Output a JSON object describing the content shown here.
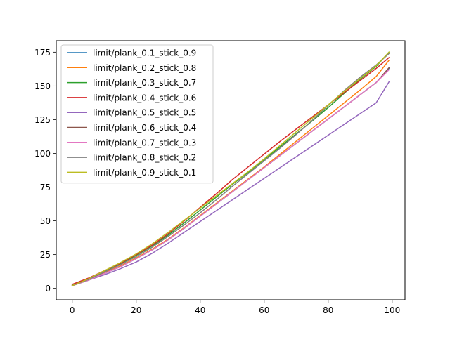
{
  "chart_data": {
    "type": "line",
    "title": "",
    "xlabel": "",
    "ylabel": "",
    "xlim": [
      -5,
      104
    ],
    "ylim": [
      -8.5,
      183.5
    ],
    "xticks": [
      0,
      20,
      40,
      60,
      80,
      100
    ],
    "yticks": [
      0,
      25,
      50,
      75,
      100,
      125,
      150,
      175
    ],
    "grid": false,
    "legend_position": "upper-left",
    "x": [
      0,
      5,
      10,
      15,
      20,
      25,
      30,
      35,
      40,
      45,
      50,
      55,
      60,
      65,
      70,
      75,
      80,
      85,
      90,
      95,
      99
    ],
    "series": [
      {
        "name": "limit/plank_0.1_stick_0.9",
        "color": "#1f77b4",
        "values": [
          2.0,
          6.0,
          11.0,
          16.0,
          22.0,
          28.5,
          36.0,
          44.5,
          53.5,
          62.5,
          71.5,
          80.5,
          89.5,
          98.5,
          107.5,
          116.5,
          125.5,
          134.5,
          143.5,
          152.5,
          163.0
        ]
      },
      {
        "name": "limit/plank_0.2_stick_0.8",
        "color": "#ff7f0e",
        "values": [
          2.5,
          6.5,
          11.5,
          16.5,
          22.5,
          29.0,
          36.5,
          45.0,
          54.0,
          63.0,
          72.0,
          81.0,
          90.0,
          99.5,
          109.0,
          118.5,
          128.0,
          137.5,
          147.0,
          157.0,
          169.0
        ]
      },
      {
        "name": "limit/plank_0.3_stick_0.7",
        "color": "#2ca02c",
        "values": [
          2.5,
          7.0,
          12.5,
          18.0,
          24.5,
          31.5,
          39.5,
          48.5,
          58.0,
          67.5,
          77.0,
          86.0,
          95.5,
          105.0,
          114.5,
          124.0,
          134.0,
          144.5,
          155.0,
          164.5,
          175.0
        ]
      },
      {
        "name": "limit/plank_0.4_stick_0.6",
        "color": "#d62728",
        "values": [
          3.0,
          7.5,
          13.0,
          18.5,
          25.0,
          32.0,
          40.5,
          50.0,
          60.0,
          70.0,
          80.5,
          90.0,
          99.5,
          109.0,
          118.0,
          127.0,
          136.0,
          145.0,
          154.0,
          163.0,
          171.0
        ]
      },
      {
        "name": "limit/plank_0.5_stick_0.5",
        "color": "#9467bd",
        "values": [
          2.0,
          6.0,
          10.0,
          14.5,
          19.5,
          26.0,
          33.5,
          41.5,
          49.5,
          57.5,
          65.5,
          73.5,
          81.5,
          89.5,
          97.5,
          105.5,
          113.5,
          121.5,
          129.5,
          137.5,
          153.0
        ]
      },
      {
        "name": "limit/plank_0.6_stick_0.4",
        "color": "#8c564b",
        "values": [
          2.0,
          6.0,
          11.0,
          16.0,
          22.0,
          28.5,
          36.0,
          44.5,
          53.5,
          62.5,
          71.5,
          80.5,
          89.5,
          98.5,
          107.5,
          116.5,
          125.5,
          134.5,
          143.5,
          152.5,
          163.5
        ]
      },
      {
        "name": "limit/plank_0.7_stick_0.3",
        "color": "#e377c2",
        "values": [
          2.0,
          6.0,
          11.0,
          16.0,
          22.0,
          28.5,
          36.0,
          44.5,
          53.5,
          62.5,
          71.5,
          80.5,
          89.5,
          98.5,
          107.5,
          116.5,
          125.5,
          134.5,
          143.5,
          152.5,
          162.0
        ]
      },
      {
        "name": "limit/plank_0.8_stick_0.2",
        "color": "#7f7f7f",
        "values": [
          2.0,
          6.5,
          12.0,
          17.5,
          23.5,
          30.5,
          38.5,
          47.0,
          56.0,
          65.5,
          75.5,
          85.0,
          94.5,
          104.0,
          114.0,
          124.5,
          135.5,
          146.5,
          156.5,
          165.5,
          174.0
        ]
      },
      {
        "name": "limit/plank_0.9_stick_0.1",
        "color": "#bcbd22",
        "values": [
          2.0,
          7.0,
          13.0,
          19.0,
          25.5,
          33.0,
          41.5,
          50.5,
          59.5,
          68.5,
          77.5,
          86.5,
          96.0,
          106.0,
          116.0,
          126.0,
          136.0,
          146.0,
          155.5,
          165.0,
          175.0
        ]
      }
    ]
  }
}
